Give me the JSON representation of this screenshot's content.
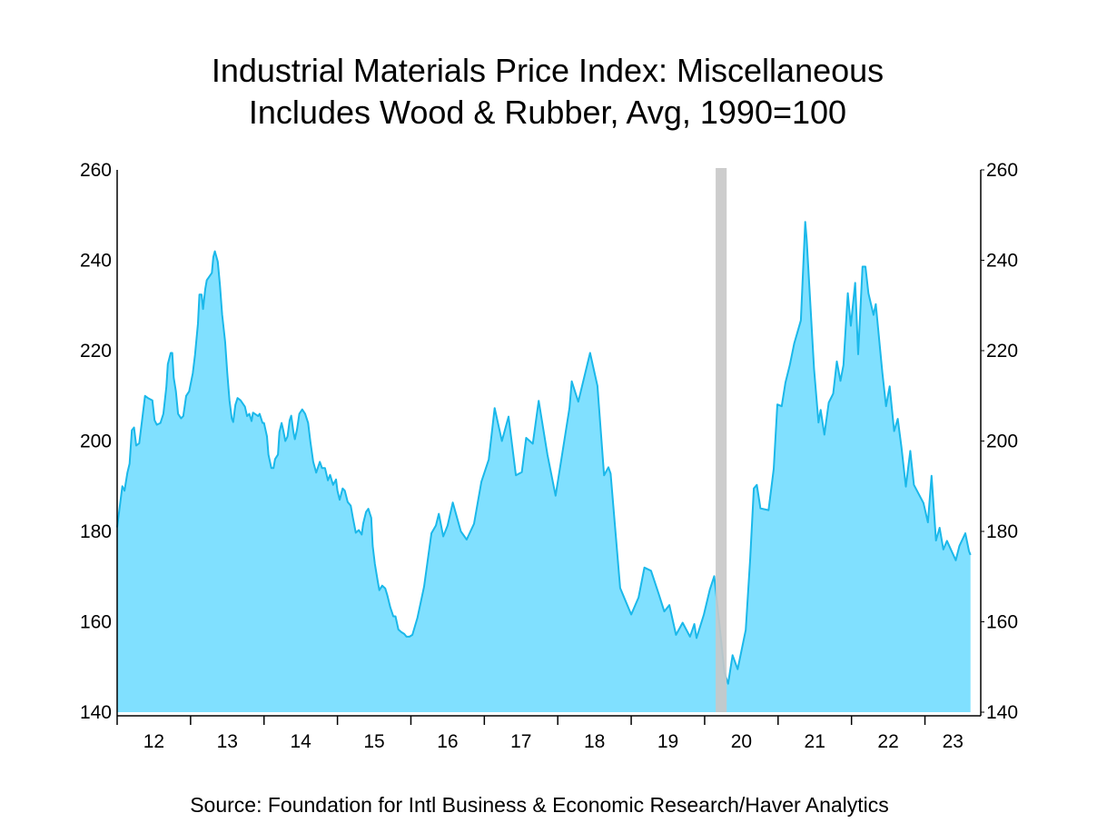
{
  "chart_data": {
    "type": "area",
    "title": "Industrial Materials Price Index: Miscellaneous",
    "subtitle": "Includes Wood & Rubber, Avg, 1990=100",
    "source": "Source:  Foundation for Intl Business & Economic Research/Haver Analytics",
    "xlim": [
      2012.0,
      2023.76
    ],
    "ylim": [
      140,
      260
    ],
    "y_ticks": [
      "140",
      "160",
      "180",
      "200",
      "220",
      "240",
      "260"
    ],
    "y_tick_values": [
      140,
      160,
      180,
      200,
      220,
      240,
      260
    ],
    "x_tick_labels": [
      "12",
      "13",
      "14",
      "15",
      "16",
      "17",
      "18",
      "19",
      "20",
      "21",
      "22",
      "23"
    ],
    "x_tick_years": [
      2012,
      2013,
      2014,
      2015,
      2016,
      2017,
      2018,
      2019,
      2020,
      2021,
      2022,
      2023
    ],
    "dual_y_axis": true,
    "grid": false,
    "legend": "none",
    "colors": {
      "fill": "#80e0ff",
      "line": "#1ab8ea",
      "recession": "#c8c8c8"
    },
    "recession_shading": [
      [
        2020.15,
        2020.3
      ]
    ],
    "series": [
      {
        "x": [
          2012.0,
          2012.04,
          2012.07,
          2012.1,
          2012.14,
          2012.17,
          2012.2,
          2012.23,
          2012.26,
          2012.3,
          2012.35,
          2012.38,
          2012.42,
          2012.48,
          2012.51,
          2012.54,
          2012.59,
          2012.63,
          2012.67,
          2012.69,
          2012.73,
          2012.75,
          2012.77,
          2012.8,
          2012.83,
          2012.87,
          2012.9,
          2012.94,
          2012.98,
          2013.03,
          2013.06,
          2013.1,
          2013.12,
          2013.15,
          2013.17,
          2013.2,
          2013.22,
          2013.29,
          2013.31,
          2013.33,
          2013.37,
          2013.4,
          2013.43,
          2013.47,
          2013.5,
          2013.53,
          2013.56,
          2013.58,
          2013.61,
          2013.64,
          2013.68,
          2013.74,
          2013.77,
          2013.8,
          2013.83,
          2013.85,
          2013.92,
          2013.94,
          2013.98,
          2014.0,
          2014.04,
          2014.06,
          2014.1,
          2014.13,
          2014.15,
          2014.19,
          2014.21,
          2014.24,
          2014.26,
          2014.29,
          2014.32,
          2014.35,
          2014.37,
          2014.4,
          2014.42,
          2014.45,
          2014.48,
          2014.52,
          2014.56,
          2014.6,
          2014.63,
          2014.67,
          2014.71,
          2014.76,
          2014.79,
          2014.83,
          2014.87,
          2014.9,
          2014.94,
          2014.98,
          2015.0,
          2015.03,
          2015.07,
          2015.1,
          2015.14,
          2015.18,
          2015.21,
          2015.25,
          2015.29,
          2015.33,
          2015.35,
          2015.39,
          2015.42,
          2015.46,
          2015.48,
          2015.51,
          2015.55,
          2015.57,
          2015.61,
          2015.65,
          2015.68,
          2015.72,
          2015.76,
          2015.79,
          2015.83,
          2015.87,
          2015.91,
          2015.94,
          2015.98,
          2016.02,
          2016.09,
          2016.18,
          2016.28,
          2016.34,
          2016.38,
          2016.44,
          2016.5,
          2016.57,
          2016.68,
          2016.76,
          2016.86,
          2016.96,
          2017.06,
          2017.14,
          2017.24,
          2017.33,
          2017.43,
          2017.51,
          2017.57,
          2017.66,
          2017.74,
          2017.86,
          2017.97,
          2018.16,
          2018.19,
          2018.28,
          2018.44,
          2018.54,
          2018.63,
          2018.69,
          2018.72,
          2018.85,
          2019.0,
          2019.1,
          2019.18,
          2019.27,
          2019.37,
          2019.45,
          2019.52,
          2019.61,
          2019.7,
          2019.8,
          2019.86,
          2019.89,
          2019.99,
          2020.07,
          2020.13,
          2020.21,
          2020.27,
          2020.32,
          2020.38,
          2020.45,
          2020.56,
          2020.62,
          2020.67,
          2020.71,
          2020.76,
          2020.87,
          2020.94,
          2020.99,
          2021.05,
          2021.1,
          2021.16,
          2021.22,
          2021.31,
          2021.37,
          2021.39,
          2021.49,
          2021.55,
          2021.58,
          2021.63,
          2021.69,
          2021.75,
          2021.8,
          2021.85,
          2021.89,
          2021.95,
          2021.99,
          2022.05,
          2022.09,
          2022.15,
          2022.19,
          2022.23,
          2022.3,
          2022.33,
          2022.42,
          2022.47,
          2022.52,
          2022.58,
          2022.63,
          2022.68,
          2022.74,
          2022.8,
          2022.85,
          2022.98,
          2023.04,
          2023.09,
          2023.15,
          2023.2,
          2023.25,
          2023.3,
          2023.42,
          2023.47,
          2023.55,
          2023.6,
          2023.62
        ],
        "values": [
          180.9,
          186,
          190,
          189,
          193,
          195,
          202.4,
          203,
          199,
          199.5,
          206,
          210,
          209.5,
          209,
          204.6,
          203.6,
          204,
          206,
          212,
          217,
          219.5,
          219.5,
          214,
          211,
          206,
          205,
          205.5,
          210,
          211,
          215,
          219,
          226,
          232.4,
          232.4,
          229.2,
          233.6,
          235.6,
          237.2,
          240.7,
          242,
          239.7,
          234.5,
          228,
          222,
          215,
          209,
          205,
          204.2,
          208,
          209.5,
          209,
          207.6,
          205.5,
          206,
          204.4,
          206.3,
          205.5,
          206,
          204,
          204,
          201,
          197,
          194,
          194,
          196,
          197,
          202,
          204,
          202.5,
          200,
          201,
          204.6,
          205.6,
          202,
          200.4,
          202.6,
          206,
          207,
          206,
          204,
          200,
          195.4,
          193,
          195.4,
          194,
          194,
          191.3,
          192.5,
          190.3,
          191.5,
          189,
          187,
          189.5,
          189,
          186.5,
          185.7,
          183,
          179.7,
          180.3,
          179.3,
          181.7,
          184.3,
          185,
          183,
          176.8,
          172.8,
          168.8,
          167,
          168,
          167.4,
          165.8,
          163.2,
          161.2,
          161.2,
          158.3,
          157.7,
          157.3,
          156.7,
          156.7,
          157.1,
          160.9,
          167.8,
          179.6,
          181.3,
          183.9,
          178.9,
          181.3,
          186.4,
          180,
          178.2,
          181.7,
          191,
          195.9,
          207.3,
          200,
          205.4,
          192.4,
          193.1,
          200.7,
          199.4,
          208.9,
          196.9,
          187.9,
          207.3,
          213.2,
          208.7,
          219.5,
          212.2,
          192.4,
          194.2,
          192.8,
          167.5,
          161.6,
          165.4,
          172,
          171.3,
          166.4,
          162.3,
          163.7,
          157.1,
          159.8,
          156.7,
          159.5,
          156.4,
          161.6,
          167.1,
          170.1,
          158.2,
          148.7,
          146.3,
          152.6,
          149.5,
          158.2,
          174,
          189.5,
          190.3,
          185.1,
          184.7,
          193.8,
          208.1,
          207.7,
          212.9,
          216.8,
          221.6,
          226.7,
          248.5,
          244.6,
          216,
          204.1,
          206.9,
          201.4,
          208.5,
          210.5,
          217.6,
          213.3,
          216.8,
          232.7,
          225.5,
          235,
          219.2,
          238.6,
          238.6,
          232.7,
          227.9,
          230.3,
          215.2,
          207.7,
          212.1,
          202.2,
          204.9,
          198.6,
          189.9,
          197.8,
          190.3,
          186.3,
          182,
          192.3,
          178,
          180.8,
          176,
          177.9,
          173.6,
          176.8,
          179.6,
          175.6,
          174.8
        ]
      }
    ]
  }
}
